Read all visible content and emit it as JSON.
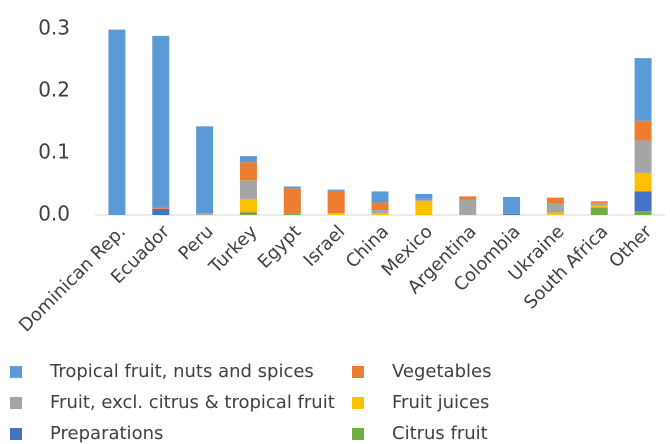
{
  "chart_data": {
    "type": "stacked_bar",
    "categories": [
      "Dominican Rep.",
      "Ecuador",
      "Peru",
      "Turkey",
      "Egypt",
      "Israel",
      "China",
      "Mexico",
      "Argentina",
      "Colombia",
      "Ukraine",
      "South Africa",
      "Other"
    ],
    "series": [
      {
        "name": "Tropical fruit, nuts and spices",
        "color": "#5b9bd5",
        "values": [
          0.299,
          0.276,
          0.14,
          0.01,
          0.003,
          0.002,
          0.018,
          0.008,
          0,
          0.027,
          0,
          0,
          0.101
        ]
      },
      {
        "name": "Vegetables",
        "color": "#ed7d31",
        "values": [
          0,
          0.003,
          0,
          0.029,
          0.041,
          0.036,
          0.012,
          0.002,
          0.005,
          0,
          0.01,
          0.003,
          0.032
        ]
      },
      {
        "name": "Fruit, excl. citrus & tropical fruit",
        "color": "#a5a5a5",
        "values": [
          0,
          0,
          0.003,
          0.03,
          0,
          0,
          0.005,
          0.002,
          0.025,
          0,
          0.014,
          0.004,
          0.052
        ]
      },
      {
        "name": "Fruit juices",
        "color": "#ffc000",
        "values": [
          0,
          0,
          0,
          0.022,
          0,
          0.003,
          0.003,
          0.022,
          0,
          0,
          0.004,
          0.003,
          0.03
        ]
      },
      {
        "name": "Preparations",
        "color": "#4472c4",
        "values": [
          0,
          0.01,
          0,
          0.002,
          0,
          0,
          0,
          0,
          0,
          0.002,
          0,
          0,
          0.032
        ]
      },
      {
        "name": "Citrus fruit",
        "color": "#70ad47",
        "values": [
          0,
          0,
          0,
          0.002,
          0.002,
          0,
          0,
          0,
          0,
          0,
          0,
          0.012,
          0.006
        ]
      }
    ],
    "ylim": [
      0,
      0.3
    ],
    "yticks": [
      {
        "value": 0,
        "label": "0.0"
      },
      0.1,
      0.2,
      0.3
    ]
  }
}
